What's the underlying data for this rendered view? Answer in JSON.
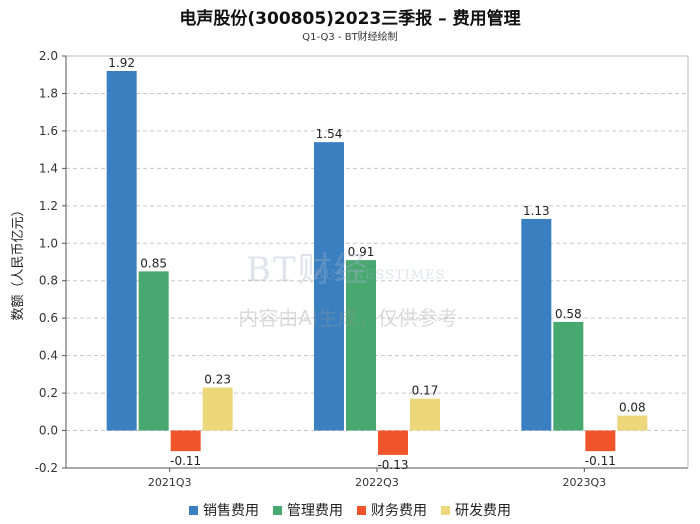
{
  "header": {
    "title": "电声股份(300805)2023三季报 – 费用管理",
    "subtitle": "Q1-Q3 - BT财经绘制"
  },
  "watermark": {
    "logo": "BT财经",
    "sub": "BUSINESSTIMES",
    "note": "内容由AI生成，仅供参考"
  },
  "chart_data": {
    "type": "bar",
    "title": "电声股份(300805)2023三季报 – 费用管理",
    "subtitle": "Q1-Q3 - BT财经绘制",
    "xlabel": "",
    "ylabel": "数额（人民币亿元）",
    "ylim": [
      -0.2,
      2.0
    ],
    "yticks": [
      "-0.2",
      "0.0",
      "0.2",
      "0.4",
      "0.6",
      "0.8",
      "1.0",
      "1.2",
      "1.4",
      "1.6",
      "1.8",
      "2.0"
    ],
    "grid": true,
    "legend_position": "bottom",
    "categories": [
      "2021Q3",
      "2022Q3",
      "2023Q3"
    ],
    "series": [
      {
        "name": "销售费用",
        "color": "#3a80c0",
        "values": [
          1.92,
          1.54,
          1.13
        ],
        "labels": [
          "1.92",
          "1.54",
          "1.13"
        ]
      },
      {
        "name": "管理费用",
        "color": "#47a870",
        "values": [
          0.85,
          0.91,
          0.58
        ],
        "labels": [
          "0.85",
          "0.91",
          "0.58"
        ]
      },
      {
        "name": "财务费用",
        "color": "#f0542a",
        "values": [
          -0.11,
          -0.13,
          -0.11
        ],
        "labels": [
          "-0.11",
          "-0.13",
          "-0.11"
        ]
      },
      {
        "name": "研发费用",
        "color": "#ecd77a",
        "values": [
          0.23,
          0.17,
          0.08
        ],
        "labels": [
          "0.23",
          "0.17",
          "0.08"
        ]
      }
    ]
  }
}
